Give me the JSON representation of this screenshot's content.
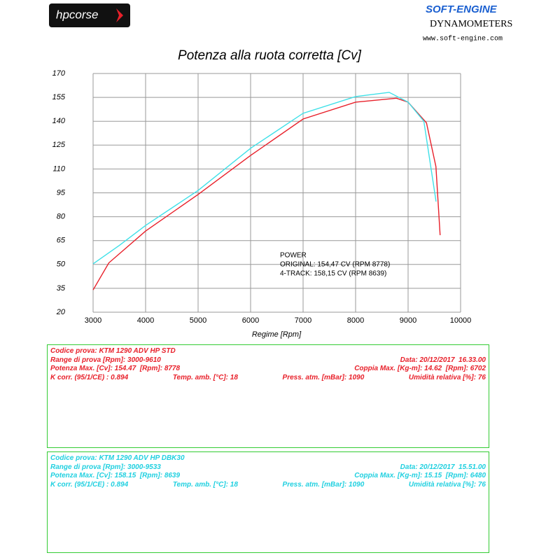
{
  "header": {
    "logo": "hpcorse",
    "brand": "SOFT-ENGINE",
    "subtitle": "DYNAMOMETERS",
    "url": "www.soft-engine.com"
  },
  "chart_data": {
    "type": "line",
    "title": "Potenza alla ruota corretta [Cv]",
    "x_label": "Regime [Rpm]",
    "xlim": [
      3000,
      10000
    ],
    "xticks": [
      3000,
      4000,
      5000,
      6000,
      7000,
      8000,
      9000,
      10000
    ],
    "ylim": [
      20,
      170
    ],
    "yticks": [
      20,
      35,
      50,
      65,
      80,
      95,
      110,
      125,
      140,
      155,
      170
    ],
    "grid": true,
    "series": [
      {
        "color": "#e8202a",
        "x": [
          3000,
          3300,
          4000,
          5000,
          6000,
          7000,
          8000,
          8778,
          9000,
          9350,
          9530,
          9610
        ],
        "values": [
          34,
          51,
          71,
          94,
          118.5,
          141.4,
          152,
          154.47,
          152,
          139,
          111.5,
          68.4
        ]
      },
      {
        "color": "#3ee0e8",
        "x": [
          3000,
          3500,
          4000,
          5000,
          6000,
          7000,
          8000,
          8639,
          9000,
          9300,
          9533
        ],
        "values": [
          50.4,
          62,
          74.5,
          96.5,
          123,
          145,
          155.5,
          158.15,
          152,
          140,
          89.5
        ]
      }
    ],
    "annotations": [
      "POWER",
      "ORIGINAL: 154,47 CV (RPM 8778)",
      "4-TRACK: 158,15 CV (RPM 8639)"
    ]
  },
  "reports": [
    {
      "color": "#e8202a",
      "lines": [
        [
          "Codice prova: KTM 1290 ADV HP STD"
        ],
        [
          "Range di prova [Rpm]: 3000-9610",
          "Data: 20/12/2017  16.33.00"
        ],
        [
          "Potenza Max. [Cv]: 154.47  [Rpm]: 8778",
          "Coppia Max. [Kg-m]: 14.62  [Rpm]: 6702"
        ],
        [
          "K corr. (95/1/CE) : 0.894",
          "Temp. amb. [°C]: 18",
          "Press. atm. [mBar]: 1090",
          "Umidità relativa [%]: 76"
        ]
      ]
    },
    {
      "color": "#20d0e0",
      "lines": [
        [
          "Codice prova: KTM 1290 ADV HP DBK30"
        ],
        [
          "Range di prova [Rpm]: 3000-9533",
          "Data: 20/12/2017  15.51.00"
        ],
        [
          "Potenza Max. [Cv]: 158.15  [Rpm]: 8639",
          "Coppia Max. [Kg-m]: 15.15  [Rpm]: 6480"
        ],
        [
          "K corr. (95/1/CE) : 0.894",
          "Temp. amb. [°C]: 18",
          "Press. atm. [mBar]: 1090",
          "Umidità relativa [%]: 76"
        ]
      ]
    }
  ]
}
